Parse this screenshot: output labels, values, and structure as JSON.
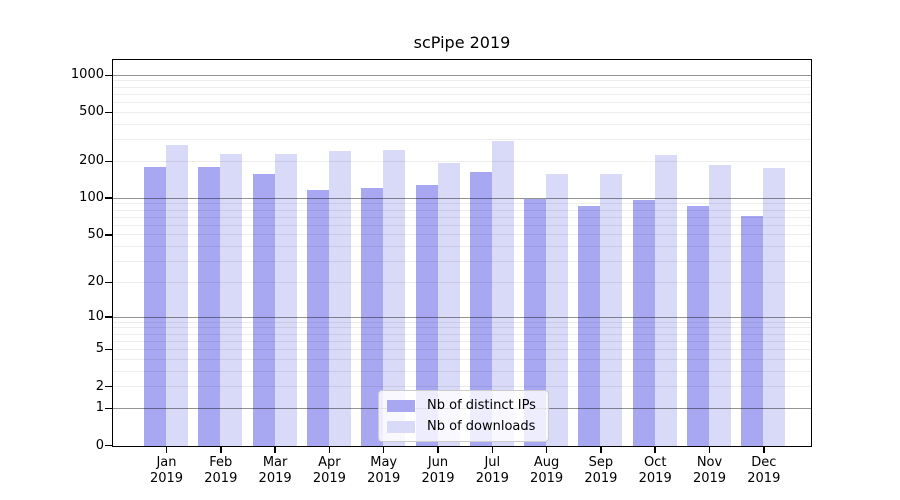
{
  "chart_data": {
    "type": "bar",
    "title": "scPipe 2019",
    "yscale": "log1p",
    "ylim": [
      0,
      1318
    ],
    "grid": true,
    "categories": [
      "Jan 2019",
      "Feb 2019",
      "Mar 2019",
      "Apr 2019",
      "May 2019",
      "Jun 2019",
      "Jul 2019",
      "Aug 2019",
      "Sep 2019",
      "Oct 2019",
      "Nov 2019",
      "Dec 2019"
    ],
    "x_tick_months": [
      "Jan",
      "Feb",
      "Mar",
      "Apr",
      "May",
      "Jun",
      "Jul",
      "Aug",
      "Sep",
      "Oct",
      "Nov",
      "Dec"
    ],
    "x_tick_year": "2019",
    "y_ticks": [
      1000,
      500,
      200,
      100,
      50,
      20,
      10,
      5,
      2,
      1,
      0
    ],
    "gridlines_major": [
      1,
      10,
      100,
      1000
    ],
    "gridlines_minor": [
      2,
      3,
      4,
      5,
      6,
      7,
      8,
      9,
      20,
      30,
      40,
      50,
      60,
      70,
      80,
      90,
      200,
      300,
      400,
      500,
      600,
      700,
      800,
      900
    ],
    "series": [
      {
        "name": "Nb of distinct IPs",
        "color": "#a7a7f2",
        "values": [
          180,
          181,
          160,
          119,
          123,
          130,
          164,
          100,
          88,
          97,
          88,
          72
        ]
      },
      {
        "name": "Nb of downloads",
        "color": "#d9d9f8",
        "values": [
          276,
          232,
          230,
          246,
          250,
          196,
          298,
          158,
          158,
          228,
          188,
          178
        ]
      }
    ],
    "legend": {
      "position": "lower-center",
      "items": [
        "Nb of distinct IPs",
        "Nb of downloads"
      ]
    }
  }
}
